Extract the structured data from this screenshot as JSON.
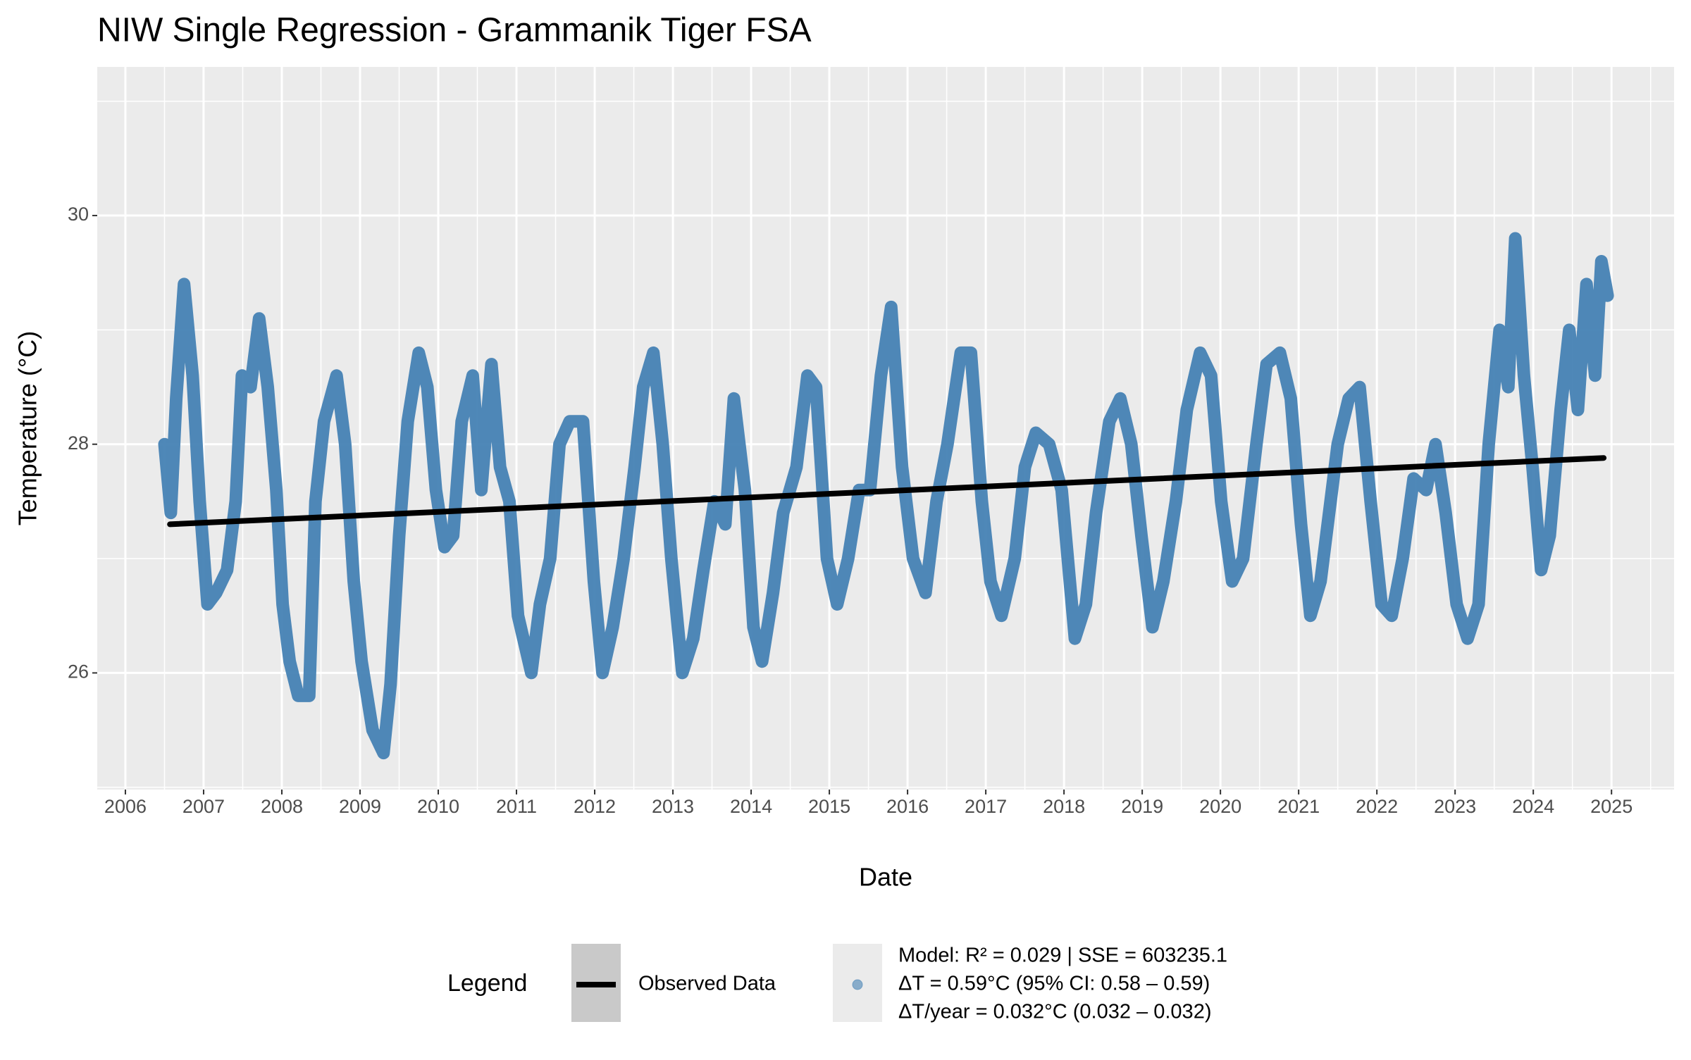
{
  "chart_data": {
    "type": "line",
    "title": "NIW Single Regression - Grammanik Tiger FSA",
    "x_label": "Date",
    "y_label": "Temperature (°C)",
    "legend_title": "Legend",
    "legend": "bottom",
    "grid": true,
    "xlim": [
      2005.64,
      2025.8
    ],
    "xticks": [
      2006,
      2007,
      2008,
      2009,
      2010,
      2011,
      2012,
      2013,
      2014,
      2015,
      2016,
      2017,
      2018,
      2019,
      2020,
      2021,
      2022,
      2023,
      2024,
      2025
    ],
    "ylim": [
      24.98,
      31.3
    ],
    "yticks": [
      26,
      28,
      30
    ],
    "series": [
      {
        "name": "Observed Data",
        "color": "#000000",
        "x": [
          2006.57,
          2024.9
        ],
        "values": [
          27.3,
          27.88
        ]
      },
      {
        "name": [
          "Model: R² = 0.029 | SSE = 603235.1",
          "ΔT = 0.59°C (95% CI: 0.58 – 0.59)",
          "ΔT/year = 0.032°C (0.032 – 0.032)"
        ],
        "color": "#4682b4",
        "x": [
          2006.5,
          2006.58,
          2006.65,
          2006.75,
          2006.86,
          2006.95,
          2007.05,
          2007.16,
          2007.3,
          2007.41,
          2007.49,
          2007.6,
          2007.71,
          2007.82,
          2007.93,
          2008.01,
          2008.1,
          2008.21,
          2008.35,
          2008.43,
          2008.54,
          2008.7,
          2008.81,
          2008.92,
          2009.02,
          2009.16,
          2009.3,
          2009.39,
          2009.5,
          2009.61,
          2009.75,
          2009.86,
          2009.97,
          2010.08,
          2010.19,
          2010.3,
          2010.44,
          2010.55,
          2010.68,
          2010.79,
          2010.91,
          2011.02,
          2011.19,
          2011.3,
          2011.43,
          2011.55,
          2011.68,
          2011.85,
          2011.99,
          2012.1,
          2012.23,
          2012.37,
          2012.51,
          2012.62,
          2012.75,
          2012.87,
          2012.98,
          2013.12,
          2013.26,
          2013.39,
          2013.53,
          2013.67,
          2013.78,
          2013.92,
          2014.03,
          2014.14,
          2014.28,
          2014.41,
          2014.58,
          2014.72,
          2014.83,
          2014.97,
          2015.1,
          2015.24,
          2015.38,
          2015.52,
          2015.66,
          2015.79,
          2015.93,
          2016.07,
          2016.23,
          2016.37,
          2016.51,
          2016.68,
          2016.81,
          2016.95,
          2017.06,
          2017.2,
          2017.37,
          2017.5,
          2017.64,
          2017.81,
          2017.97,
          2018.14,
          2018.28,
          2018.41,
          2018.58,
          2018.72,
          2018.86,
          2018.99,
          2019.13,
          2019.27,
          2019.43,
          2019.57,
          2019.74,
          2019.88,
          2020.01,
          2020.15,
          2020.29,
          2020.46,
          2020.59,
          2020.76,
          2020.9,
          2021.03,
          2021.15,
          2021.28,
          2021.39,
          2021.5,
          2021.64,
          2021.78,
          2021.92,
          2022.06,
          2022.19,
          2022.33,
          2022.47,
          2022.63,
          2022.75,
          2022.88,
          2023.02,
          2023.16,
          2023.3,
          2023.43,
          2023.57,
          2023.68,
          2023.77,
          2023.88,
          2023.99,
          2024.1,
          2024.21,
          2024.35,
          2024.46,
          2024.57,
          2024.68,
          2024.79,
          2024.87,
          2024.95
        ],
        "values": [
          28.0,
          27.4,
          28.4,
          29.4,
          28.6,
          27.5,
          26.6,
          26.7,
          26.9,
          27.5,
          28.6,
          28.5,
          29.1,
          28.5,
          27.6,
          26.6,
          26.1,
          25.8,
          25.8,
          27.5,
          28.2,
          28.6,
          28.0,
          26.8,
          26.1,
          25.5,
          25.3,
          25.9,
          27.2,
          28.2,
          28.8,
          28.5,
          27.6,
          27.1,
          27.2,
          28.2,
          28.6,
          27.6,
          28.7,
          27.8,
          27.5,
          26.5,
          26.0,
          26.6,
          27.0,
          28.0,
          28.2,
          28.2,
          26.8,
          26.0,
          26.4,
          27.0,
          27.8,
          28.5,
          28.8,
          28.0,
          27.0,
          26.0,
          26.3,
          26.9,
          27.5,
          27.3,
          28.4,
          27.6,
          26.4,
          26.1,
          26.7,
          27.4,
          27.8,
          28.6,
          28.5,
          27.0,
          26.6,
          27.0,
          27.6,
          27.6,
          28.6,
          29.2,
          27.8,
          27.0,
          26.7,
          27.5,
          28.0,
          28.8,
          28.8,
          27.5,
          26.8,
          26.5,
          27.0,
          27.8,
          28.1,
          28.0,
          27.6,
          26.3,
          26.6,
          27.4,
          28.2,
          28.4,
          28.0,
          27.2,
          26.4,
          26.8,
          27.5,
          28.3,
          28.8,
          28.6,
          27.5,
          26.8,
          27.0,
          28.0,
          28.7,
          28.8,
          28.4,
          27.3,
          26.5,
          26.8,
          27.4,
          28.0,
          28.4,
          28.5,
          27.5,
          26.6,
          26.5,
          27.0,
          27.7,
          27.6,
          28.0,
          27.4,
          26.6,
          26.3,
          26.6,
          28.0,
          29.0,
          28.5,
          29.8,
          28.6,
          27.8,
          26.9,
          27.2,
          28.3,
          29.0,
          28.3,
          29.4,
          28.6,
          29.6,
          29.3
        ]
      }
    ]
  }
}
